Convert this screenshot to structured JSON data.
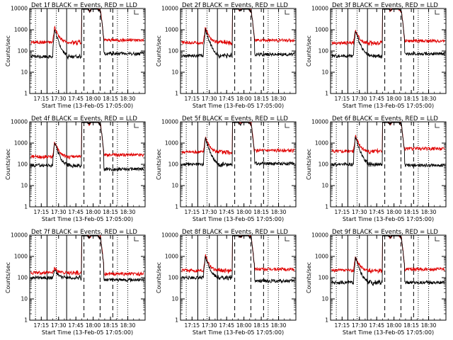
{
  "chart_data": {
    "type": "line",
    "layout": "3x3 grid",
    "yscale": "log",
    "ylim": [
      1,
      10000
    ],
    "xlim": [
      "17:05",
      "18:45"
    ],
    "xticks": [
      "17:15",
      "17:30",
      "17:45",
      "18:00",
      "18:15",
      "18:30"
    ],
    "yticks": [
      "1",
      "10",
      "100",
      "1000",
      "10000"
    ],
    "ylabel": "Counts/sec",
    "xlabel": "Start Time (13-Feb-05 17:05:00)",
    "colors": {
      "events": "#000000",
      "lld": "#e00000"
    },
    "markers": {
      "dotted": [
        "17:10",
        "17:28",
        "18:21",
        "18:30"
      ],
      "solid": [
        "17:20",
        "17:37"
      ],
      "dashed": [
        "17:52",
        "18:06",
        "18:17"
      ]
    },
    "panels": [
      {
        "title": "Det 1f BLACK = Events, RED = LLD",
        "events_base": 55,
        "lld_base": 260,
        "peak_events": 1000,
        "peak_lld": 1400,
        "post_events": 75,
        "post_lld": 330
      },
      {
        "title": "Det 2f BLACK = Events, RED = LLD",
        "events_base": 60,
        "lld_base": 250,
        "peak_events": 1100,
        "peak_lld": 1300,
        "post_events": 70,
        "post_lld": 320
      },
      {
        "title": "Det 3f BLACK = Events, RED = LLD",
        "events_base": 60,
        "lld_base": 240,
        "peak_events": 900,
        "peak_lld": 1000,
        "post_events": 75,
        "post_lld": 300
      },
      {
        "title": "Det 4f BLACK = Events, RED = LLD",
        "events_base": 90,
        "lld_base": 230,
        "peak_events": 1100,
        "peak_lld": 1200,
        "post_events": 60,
        "post_lld": 280
      },
      {
        "title": "Det 5f BLACK = Events, RED = LLD",
        "events_base": 100,
        "lld_base": 380,
        "peak_events": 1800,
        "peak_lld": 2000,
        "post_events": 110,
        "post_lld": 450
      },
      {
        "title": "Det 6f BLACK = Events, RED = LLD",
        "events_base": 100,
        "lld_base": 420,
        "peak_events": 2000,
        "peak_lld": 2200,
        "post_events": 90,
        "post_lld": 550
      },
      {
        "title": "Det 7f BLACK = Events, RED = LLD",
        "events_base": 100,
        "lld_base": 170,
        "peak_events": 250,
        "peak_lld": 300,
        "post_events": 80,
        "post_lld": 150
      },
      {
        "title": "Det 8f BLACK = Events, RED = LLD",
        "events_base": 100,
        "lld_base": 220,
        "peak_events": 1000,
        "peak_lld": 1200,
        "post_events": 70,
        "post_lld": 250
      },
      {
        "title": "Det 9f BLACK = Events, RED = LLD",
        "events_base": 60,
        "lld_base": 220,
        "peak_events": 900,
        "peak_lld": 1000,
        "post_events": 60,
        "post_lld": 250
      }
    ]
  }
}
